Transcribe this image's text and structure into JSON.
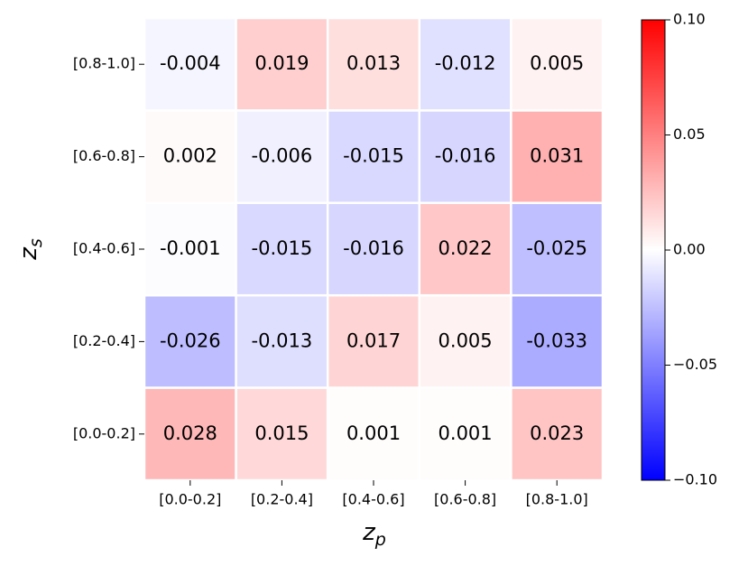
{
  "chart_data": {
    "type": "heatmap",
    "x_categories": [
      "[0.0-0.2]",
      "[0.2-0.4]",
      "[0.4-0.6]",
      "[0.6-0.8]",
      "[0.8-1.0]"
    ],
    "y_categories": [
      "[0.8-1.0]",
      "[0.6-0.8]",
      "[0.4-0.6]",
      "[0.2-0.4]",
      "[0.0-0.2]"
    ],
    "values": [
      [
        -0.004,
        0.019,
        0.013,
        -0.012,
        0.005
      ],
      [
        0.002,
        -0.006,
        -0.015,
        -0.016,
        0.031
      ],
      [
        -0.001,
        -0.015,
        -0.016,
        0.022,
        -0.025
      ],
      [
        -0.026,
        -0.013,
        0.017,
        0.005,
        -0.033
      ],
      [
        0.028,
        0.015,
        0.001,
        0.001,
        0.023
      ]
    ],
    "xlabel": {
      "text": "z",
      "subscript": "p"
    },
    "ylabel": {
      "text": "z",
      "subscript": "s"
    },
    "colormap": "bwr",
    "clim": [
      -0.1,
      0.1
    ],
    "cticks": [
      {
        "value": -0.1,
        "label": "−0.10"
      },
      {
        "value": -0.05,
        "label": "−0.05"
      },
      {
        "value": 0,
        "label": "0.00"
      },
      {
        "value": 0.05,
        "label": "0.05"
      },
      {
        "value": 0.1,
        "label": "0.10"
      }
    ]
  }
}
